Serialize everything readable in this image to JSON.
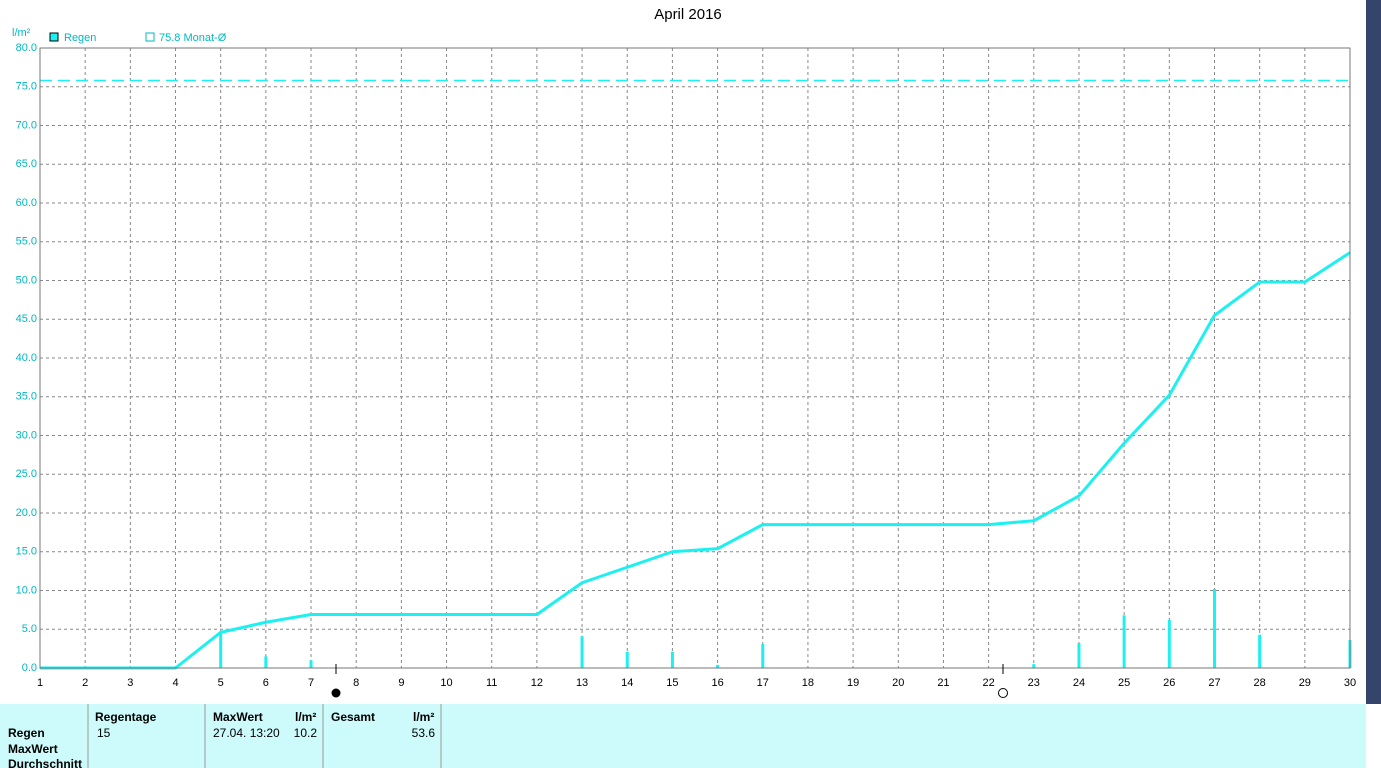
{
  "chart_data": {
    "type": "combo",
    "title": "April 2016",
    "y_label": "l/m²",
    "xlim": [
      1,
      30
    ],
    "xticks": [
      1,
      2,
      3,
      4,
      5,
      6,
      7,
      8,
      9,
      10,
      11,
      12,
      13,
      14,
      15,
      16,
      17,
      18,
      19,
      20,
      21,
      22,
      23,
      24,
      25,
      26,
      27,
      28,
      29,
      30
    ],
    "ylim": [
      0,
      80
    ],
    "yticks": [
      {
        "value": 0,
        "label": "0.0"
      },
      {
        "value": 5,
        "label": "5.0"
      },
      {
        "value": 10,
        "label": "10.0"
      },
      {
        "value": 15,
        "label": "15.0"
      },
      {
        "value": 20,
        "label": "20.0"
      },
      {
        "value": 25,
        "label": "25.0"
      },
      {
        "value": 30,
        "label": "30.0"
      },
      {
        "value": 35,
        "label": "35.0"
      },
      {
        "value": 40,
        "label": "40.0"
      },
      {
        "value": 45,
        "label": "45.0"
      },
      {
        "value": 50,
        "label": "50.0"
      },
      {
        "value": 55,
        "label": "55.0"
      },
      {
        "value": 60,
        "label": "60.0"
      },
      {
        "value": 65,
        "label": "65.0"
      },
      {
        "value": 70,
        "label": "70.0"
      },
      {
        "value": 75,
        "label": "75.0"
      },
      {
        "value": 80,
        "label": "80.0"
      }
    ],
    "grid": true,
    "series": [
      {
        "name": "Regen",
        "color": "#1cf0f0",
        "x": [
          1,
          4,
          5,
          6,
          7,
          12,
          13,
          14,
          15,
          16,
          17,
          22,
          23,
          24,
          25,
          26,
          27,
          28,
          29,
          30
        ],
        "values": [
          0,
          0,
          4.6,
          5.9,
          6.9,
          6.9,
          11,
          13,
          15,
          15.4,
          18.5,
          18.5,
          19,
          22.2,
          29,
          35.2,
          45.5,
          49.8,
          49.8,
          53.6
        ]
      }
    ],
    "bars": {
      "color": "#1cf0f0",
      "x": [
        5,
        6,
        7,
        13,
        14,
        15,
        16,
        17,
        23,
        24,
        25,
        26,
        27,
        28,
        30
      ],
      "values": [
        4.6,
        1.5,
        1.0,
        4.1,
        2.1,
        2.1,
        0.4,
        3.1,
        0.5,
        3.2,
        6.8,
        6.2,
        10.2,
        4.3,
        3.6
      ]
    },
    "reference": {
      "label": "75.8 Monat-Ø",
      "value": 75.8,
      "color": "#1cf0f0"
    }
  },
  "table": {
    "header": [
      "Regentage",
      "MaxWert",
      "l/m²",
      "Gesamt",
      "l/m²"
    ],
    "row_labels": [
      "Regen",
      "MaxWert",
      "Durchschnitt"
    ],
    "values": [
      15,
      "27.04. 13:20",
      10.2,
      53.6
    ]
  }
}
